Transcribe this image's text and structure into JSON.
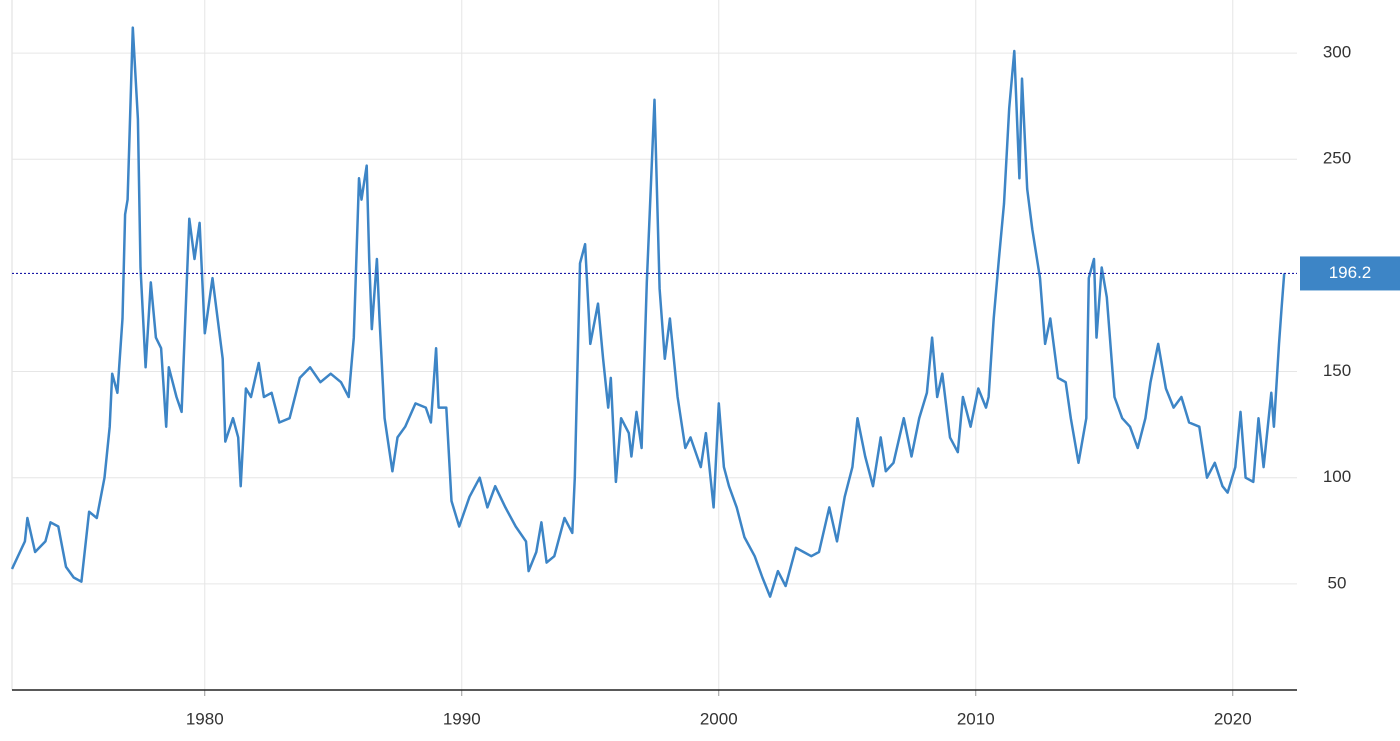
{
  "chart_data": {
    "type": "line",
    "x": [
      1972.5,
      1973.0,
      1973.1,
      1973.4,
      1973.8,
      1974.0,
      1974.3,
      1974.6,
      1974.9,
      1975.2,
      1975.5,
      1975.8,
      1976.1,
      1976.3,
      1976.4,
      1976.6,
      1976.8,
      1976.9,
      1977.0,
      1977.2,
      1977.4,
      1977.5,
      1977.7,
      1977.9,
      1978.1,
      1978.3,
      1978.5,
      1978.6,
      1978.9,
      1979.1,
      1979.4,
      1979.6,
      1979.8,
      1980.0,
      1980.3,
      1980.5,
      1980.7,
      1980.8,
      1981.1,
      1981.3,
      1981.4,
      1981.6,
      1981.8,
      1982.1,
      1982.3,
      1982.6,
      1982.9,
      1983.3,
      1983.7,
      1984.1,
      1984.5,
      1984.9,
      1985.3,
      1985.6,
      1985.8,
      1986.0,
      1986.1,
      1986.3,
      1986.4,
      1986.5,
      1986.7,
      1986.8,
      1987.0,
      1987.3,
      1987.5,
      1987.8,
      1988.2,
      1988.6,
      1988.8,
      1989.0,
      1989.1,
      1989.4,
      1989.6,
      1989.9,
      1990.3,
      1990.7,
      1991.0,
      1991.3,
      1991.7,
      1992.1,
      1992.5,
      1992.6,
      1992.9,
      1993.1,
      1993.3,
      1993.6,
      1994.0,
      1994.3,
      1994.4,
      1994.6,
      1994.8,
      1995.0,
      1995.3,
      1995.5,
      1995.7,
      1995.8,
      1996.0,
      1996.2,
      1996.5,
      1996.6,
      1996.8,
      1997.0,
      1997.2,
      1997.5,
      1997.7,
      1997.9,
      1998.1,
      1998.4,
      1998.7,
      1998.9,
      1999.3,
      1999.5,
      1999.8,
      2000.0,
      2000.2,
      2000.4,
      2000.7,
      2001.0,
      2001.4,
      2001.7,
      2002.0,
      2002.3,
      2002.6,
      2003.0,
      2003.3,
      2003.6,
      2003.9,
      2004.3,
      2004.6,
      2004.9,
      2005.2,
      2005.4,
      2005.7,
      2006.0,
      2006.3,
      2006.5,
      2006.8,
      2007.2,
      2007.5,
      2007.8,
      2008.1,
      2008.3,
      2008.5,
      2008.7,
      2009.0,
      2009.3,
      2009.5,
      2009.8,
      2010.1,
      2010.4,
      2010.5,
      2010.7,
      2010.9,
      2011.1,
      2011.3,
      2011.5,
      2011.7,
      2011.8,
      2012.0,
      2012.2,
      2012.5,
      2012.7,
      2012.9,
      2013.2,
      2013.5,
      2013.7,
      2014.0,
      2014.3,
      2014.4,
      2014.6,
      2014.7,
      2014.9,
      2015.1,
      2015.4,
      2015.7,
      2016.0,
      2016.3,
      2016.6,
      2016.8,
      2017.1,
      2017.4,
      2017.7,
      2018.0,
      2018.3,
      2018.7,
      2019.0,
      2019.3,
      2019.6,
      2019.8,
      2020.1,
      2020.3,
      2020.5,
      2020.8,
      2021.0,
      2021.2,
      2021.5,
      2021.6,
      2021.8,
      2021.9,
      2022.0
    ],
    "series": [
      {
        "color": "#3d85c6",
        "values": [
          57,
          70,
          81,
          65,
          70,
          79,
          77,
          58,
          53,
          51,
          84,
          81,
          100,
          124,
          149,
          140,
          175,
          224,
          231,
          312,
          269,
          199,
          152,
          192,
          166,
          161,
          124,
          152,
          138,
          131,
          222,
          203,
          220,
          168,
          194,
          175,
          156,
          117,
          128,
          119,
          96,
          142,
          138,
          154,
          138,
          140,
          126,
          128,
          147,
          152,
          145,
          149,
          145,
          138,
          166,
          241,
          231,
          247,
          203,
          170,
          203,
          175,
          128,
          103,
          119,
          124,
          135,
          133,
          126,
          161,
          133,
          133,
          89,
          77,
          91,
          100,
          86,
          96,
          86,
          77,
          70,
          56,
          65,
          79,
          60,
          63,
          81,
          74,
          100,
          201,
          210,
          163,
          182,
          156,
          133,
          147,
          98,
          128,
          121,
          110,
          131,
          114,
          192,
          278,
          189,
          156,
          175,
          138,
          114,
          119,
          105,
          121,
          86,
          135,
          105,
          96,
          86,
          72,
          63,
          53,
          44,
          56,
          49,
          67,
          65,
          63,
          65,
          86,
          70,
          91,
          105,
          128,
          110,
          96,
          119,
          103,
          107,
          128,
          110,
          128,
          140,
          166,
          138,
          149,
          119,
          112,
          138,
          124,
          142,
          133,
          138,
          175,
          203,
          229,
          274,
          301,
          241,
          288,
          236,
          217,
          194,
          163,
          175,
          147,
          145,
          128,
          107,
          128,
          194,
          203,
          166,
          199,
          185,
          138,
          128,
          124,
          114,
          128,
          145,
          163,
          142,
          133,
          138,
          126,
          124,
          100,
          107,
          96,
          93,
          105,
          131,
          100,
          98,
          128,
          105,
          140,
          124,
          163,
          180,
          196.2
        ]
      }
    ],
    "current_value": 196.2,
    "xlim": [
      1972.5,
      2022.5
    ],
    "xticks": [
      1980,
      1990,
      2000,
      2010,
      2020
    ],
    "ylim": [
      0,
      325
    ],
    "yticks": [
      50,
      100,
      150,
      250,
      300
    ],
    "grid": true
  }
}
